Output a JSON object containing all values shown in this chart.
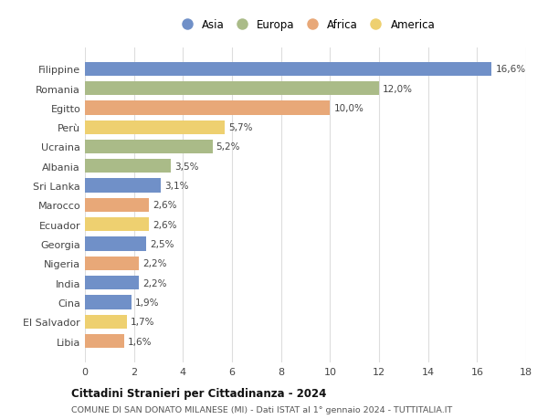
{
  "countries": [
    "Filippine",
    "Romania",
    "Egitto",
    "Perù",
    "Ucraina",
    "Albania",
    "Sri Lanka",
    "Marocco",
    "Ecuador",
    "Georgia",
    "Nigeria",
    "India",
    "Cina",
    "El Salvador",
    "Libia"
  ],
  "values": [
    16.6,
    12.0,
    10.0,
    5.7,
    5.2,
    3.5,
    3.1,
    2.6,
    2.6,
    2.5,
    2.2,
    2.2,
    1.9,
    1.7,
    1.6
  ],
  "labels": [
    "16,6%",
    "12,0%",
    "10,0%",
    "5,7%",
    "5,2%",
    "3,5%",
    "3,1%",
    "2,6%",
    "2,6%",
    "2,5%",
    "2,2%",
    "2,2%",
    "1,9%",
    "1,7%",
    "1,6%"
  ],
  "continents": [
    "Asia",
    "Europa",
    "Africa",
    "America",
    "Europa",
    "Europa",
    "Asia",
    "Africa",
    "America",
    "Asia",
    "Africa",
    "Asia",
    "Asia",
    "America",
    "Africa"
  ],
  "colors": {
    "Asia": "#7090C8",
    "Europa": "#AABB88",
    "Africa": "#E8A878",
    "America": "#EED070"
  },
  "legend_order": [
    "Asia",
    "Europa",
    "Africa",
    "America"
  ],
  "title": "Cittadini Stranieri per Cittadinanza - 2024",
  "subtitle": "COMUNE DI SAN DONATO MILANESE (MI) - Dati ISTAT al 1° gennaio 2024 - TUTTITALIA.IT",
  "xlim": [
    0,
    18
  ],
  "xticks": [
    0,
    2,
    4,
    6,
    8,
    10,
    12,
    14,
    16,
    18
  ],
  "background_color": "#ffffff",
  "grid_color": "#dddddd",
  "bar_height": 0.72
}
